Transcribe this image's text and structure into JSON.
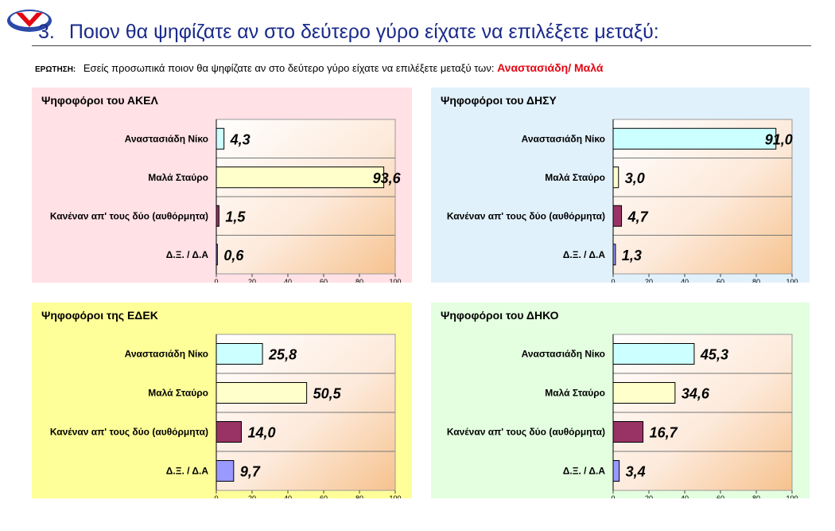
{
  "header": {
    "number": "3.",
    "title": "Ποιον θα ψηφίζατε αν στο δεύτερο γύρο είχατε να επιλέξετε μεταξύ:"
  },
  "question": {
    "label": "ΕΡΩΤΗΣΗ:",
    "text": "Εσείς προσωπικά ποιον θα ψηφίζατε αν στο δεύτερο γύρο είχατε να επιλέξετε μεταξύ των:",
    "highlight": "Αναστασιάδη/ Μαλά"
  },
  "colors": {
    "title": "#1a2a8a",
    "highlight": "#e30613",
    "panel_akel": "#ffe1e6",
    "panel_disy": "#e1f1fc",
    "panel_edek": "#ffff99",
    "panel_diko": "#e3ffe0",
    "bar_anastasiadis": "#ccffff",
    "bar_malas": "#ffffcc",
    "bar_none": "#993366",
    "bar_dk": "#9999ff"
  },
  "chart_data": [
    {
      "type": "bar",
      "orientation": "horizontal",
      "title": "Ψηφοφόροι του ΑΚΕΛ",
      "categories": [
        "Αναστασιάδη Νίκο",
        "Μαλά Σταύρο",
        "Κανέναν απ' τους δύο (αυθόρμητα)",
        "Δ.Ξ. / Δ.Α"
      ],
      "values": [
        4.3,
        93.6,
        1.5,
        0.6
      ],
      "value_labels": [
        "4,3",
        "93,6",
        "1,5",
        "0,6"
      ],
      "xlim": [
        0,
        100
      ],
      "xticks": [
        0,
        20,
        40,
        60,
        80,
        100
      ],
      "grid": true
    },
    {
      "type": "bar",
      "orientation": "horizontal",
      "title": "Ψηφοφόροι του ΔΗΣΥ",
      "categories": [
        "Αναστασιάδη Νίκο",
        "Μαλά Σταύρο",
        "Κανέναν απ' τους δύο (αυθόρμητα)",
        "Δ.Ξ. / Δ.Α"
      ],
      "values": [
        91.0,
        3.0,
        4.7,
        1.3
      ],
      "value_labels": [
        "91,0",
        "3,0",
        "4,7",
        "1,3"
      ],
      "xlim": [
        0,
        100
      ],
      "xticks": [
        0,
        20,
        40,
        60,
        80,
        100
      ],
      "grid": true
    },
    {
      "type": "bar",
      "orientation": "horizontal",
      "title": "Ψηφοφόροι της ΕΔΕΚ",
      "categories": [
        "Αναστασιάδη Νίκο",
        "Μαλά Σταύρο",
        "Κανέναν απ' τους δύο (αυθόρμητα)",
        "Δ.Ξ. / Δ.Α"
      ],
      "values": [
        25.8,
        50.5,
        14.0,
        9.7
      ],
      "value_labels": [
        "25,8",
        "50,5",
        "14,0",
        "9,7"
      ],
      "xlim": [
        0,
        100
      ],
      "xticks": [
        0,
        20,
        40,
        60,
        80,
        100
      ],
      "grid": true
    },
    {
      "type": "bar",
      "orientation": "horizontal",
      "title": "Ψηφοφόροι του ΔΗΚΟ",
      "categories": [
        "Αναστασιάδη Νίκο",
        "Μαλά Σταύρο",
        "Κανέναν απ' τους δύο (αυθόρμητα)",
        "Δ.Ξ. / Δ.Α"
      ],
      "values": [
        45.3,
        34.6,
        16.7,
        3.4
      ],
      "value_labels": [
        "45,3",
        "34,6",
        "16,7",
        "3,4"
      ],
      "xlim": [
        0,
        100
      ],
      "xticks": [
        0,
        20,
        40,
        60,
        80,
        100
      ],
      "grid": true
    }
  ]
}
